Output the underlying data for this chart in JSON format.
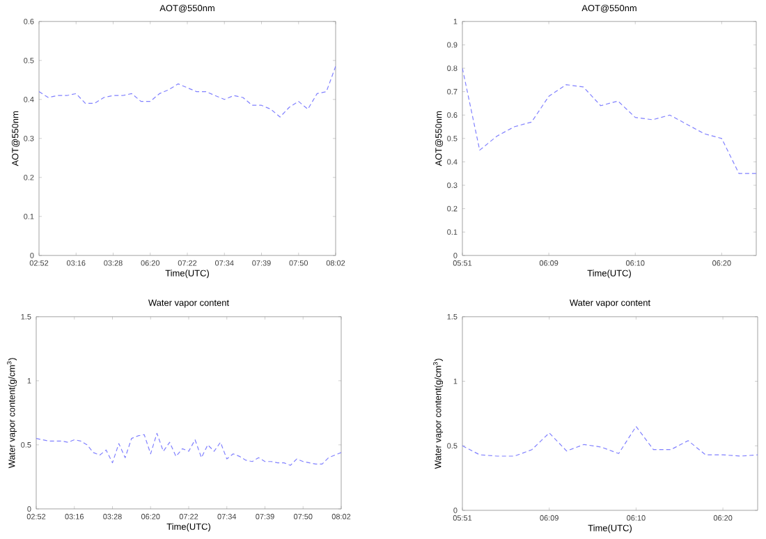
{
  "chart_data": [
    {
      "type": "line",
      "title": "AOT@550nm",
      "xlabel": "Time(UTC)",
      "ylabel": "AOT@550nm",
      "color": "#8080ff",
      "line_style": "dashed",
      "categories": [
        "02:52",
        null,
        null,
        null,
        "03:16",
        null,
        null,
        null,
        "03:28",
        null,
        null,
        null,
        "06:20",
        null,
        null,
        null,
        "07:22",
        null,
        null,
        null,
        "07:34",
        null,
        null,
        null,
        "07:39",
        null,
        null,
        null,
        "07:50",
        null,
        null,
        null,
        "08:02"
      ],
      "values": [
        0.42,
        0.405,
        0.41,
        0.41,
        0.415,
        0.39,
        0.39,
        0.405,
        0.41,
        0.41,
        0.415,
        0.395,
        0.395,
        0.415,
        0.425,
        0.44,
        0.43,
        0.42,
        0.42,
        0.41,
        0.4,
        0.41,
        0.405,
        0.385,
        0.385,
        0.375,
        0.355,
        0.38,
        0.395,
        0.375,
        0.415,
        0.42,
        0.485
      ],
      "ylim": [
        0,
        0.6
      ],
      "yticks": [
        0,
        0.1,
        0.2,
        0.3,
        0.4,
        0.5,
        0.6
      ]
    },
    {
      "type": "line",
      "title": "AOT@550nm",
      "xlabel": "Time(UTC)",
      "ylabel": "AOT@550nm",
      "color": "#8080ff",
      "line_style": "dashed",
      "categories": [
        "05:51",
        null,
        null,
        null,
        null,
        "06:09",
        null,
        null,
        null,
        null,
        "06:10",
        null,
        null,
        null,
        null,
        "06:20",
        null,
        null
      ],
      "values": [
        0.8,
        0.45,
        0.51,
        0.55,
        0.57,
        0.68,
        0.73,
        0.72,
        0.64,
        0.66,
        0.59,
        0.58,
        0.6,
        0.56,
        0.52,
        0.5,
        0.35,
        0.35
      ],
      "ylim": [
        0,
        1
      ],
      "yticks": [
        0,
        0.1,
        0.2,
        0.3,
        0.4,
        0.5,
        0.6,
        0.7,
        0.8,
        0.9,
        1
      ]
    },
    {
      "type": "line",
      "title": "Water vapor content",
      "xlabel": "Time(UTC)",
      "ylabel": "Water vapor content(g/cm$^{3}$)",
      "color": "#8080ff",
      "line_style": "dashed",
      "categories": [
        "02:52",
        null,
        null,
        null,
        null,
        null,
        "03:16",
        null,
        null,
        null,
        null,
        null,
        "03:28",
        null,
        null,
        null,
        null,
        null,
        "06:20",
        null,
        null,
        null,
        null,
        null,
        "07:22",
        null,
        null,
        null,
        null,
        null,
        "07:34",
        null,
        null,
        null,
        null,
        null,
        "07:39",
        null,
        null,
        null,
        null,
        null,
        "07:50",
        null,
        null,
        null,
        null,
        null,
        "08:02"
      ],
      "values": [
        0.55,
        0.54,
        0.53,
        0.53,
        0.53,
        0.52,
        0.54,
        0.53,
        0.5,
        0.44,
        0.42,
        0.46,
        0.36,
        0.51,
        0.4,
        0.55,
        0.57,
        0.58,
        0.43,
        0.59,
        0.45,
        0.52,
        0.41,
        0.47,
        0.45,
        0.54,
        0.4,
        0.5,
        0.45,
        0.52,
        0.39,
        0.43,
        0.41,
        0.38,
        0.37,
        0.4,
        0.37,
        0.37,
        0.36,
        0.36,
        0.34,
        0.39,
        0.37,
        0.36,
        0.35,
        0.35,
        0.4,
        0.42,
        0.44
      ],
      "ylim": [
        0,
        1.5
      ],
      "yticks": [
        0,
        0.5,
        1,
        1.5
      ]
    },
    {
      "type": "line",
      "title": "Water vapor content",
      "xlabel": "Time(UTC)",
      "ylabel": "Water vapor content(g/cm$^{3}$)",
      "color": "#8080ff",
      "line_style": "dashed",
      "categories": [
        "05:51",
        null,
        null,
        null,
        null,
        "06:09",
        null,
        null,
        null,
        null,
        "06:10",
        null,
        null,
        null,
        null,
        "06:20",
        null,
        null
      ],
      "values": [
        0.5,
        0.43,
        0.42,
        0.42,
        0.47,
        0.6,
        0.46,
        0.51,
        0.49,
        0.44,
        0.65,
        0.47,
        0.47,
        0.54,
        0.43,
        0.43,
        0.42,
        0.43
      ],
      "ylim": [
        0,
        1.5
      ],
      "yticks": [
        0,
        0.5,
        1,
        1.5
      ]
    }
  ]
}
